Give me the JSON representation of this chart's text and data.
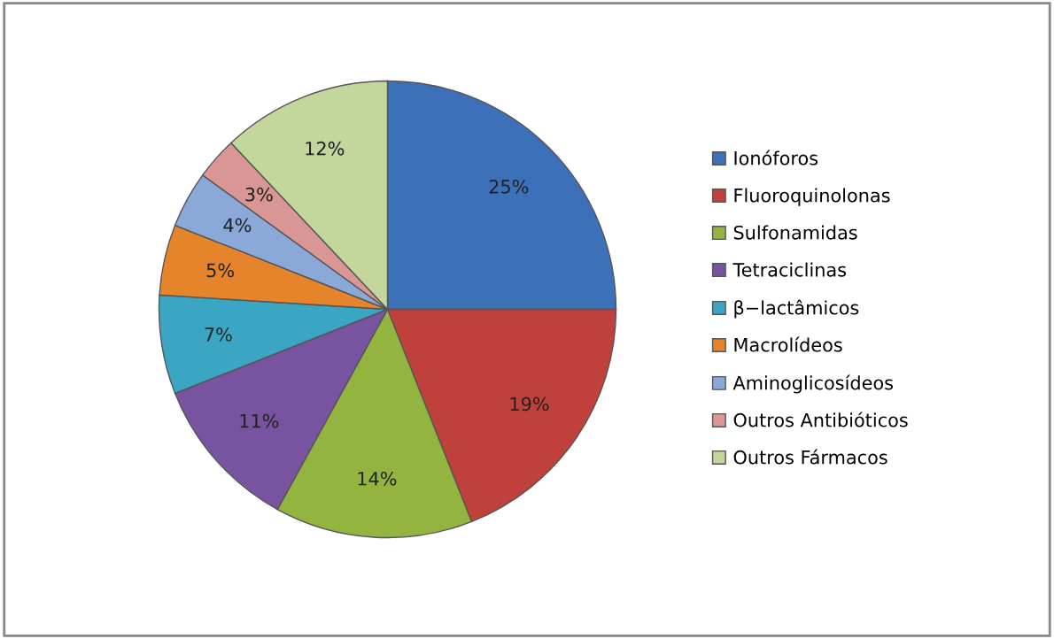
{
  "chart_data": {
    "type": "pie",
    "categories": [
      "Ionóforos",
      "Fluoroquinolonas",
      "Sulfonamidas",
      "Tetraciclinas",
      "β−lactâmicos",
      "Macrolídeos",
      "Aminoglicosídeos",
      "Outros Antibióticos",
      "Outros Fármacos"
    ],
    "values": [
      25,
      19,
      14,
      11,
      7,
      5,
      4,
      3,
      12
    ],
    "value_labels": [
      "25%",
      "19%",
      "14%",
      "11%",
      "7%",
      "5%",
      "4%",
      "3%",
      "12%"
    ],
    "colors": [
      "#3c70b8",
      "#c0403c",
      "#93b43f",
      "#7753a0",
      "#3ba6c3",
      "#e6842b",
      "#8aa9d9",
      "#d99694",
      "#c3d69b"
    ],
    "legend": "right"
  }
}
